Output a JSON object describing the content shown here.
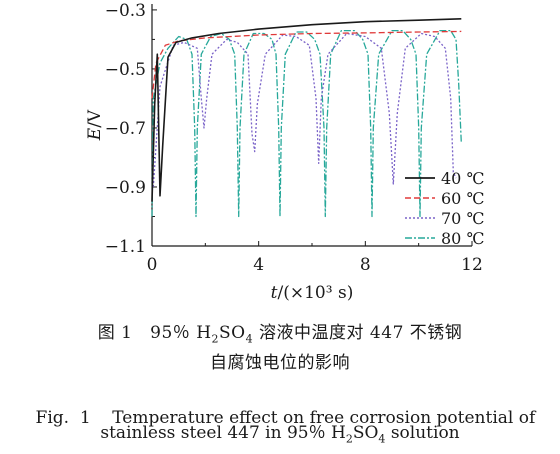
{
  "chart_data": {
    "type": "line",
    "xlabel_prefix": "t",
    "xlabel_suffix": "/(×10³ s)",
    "ylabel_prefix": "E",
    "ylabel_suffix": "/V",
    "xlim": [
      0,
      12
    ],
    "ylim": [
      -1.1,
      -0.28
    ],
    "xticks": [
      "0",
      "4",
      "8",
      "12"
    ],
    "yticks": [
      "−0.3",
      "−0.5",
      "−0.7",
      "−0.9",
      "−1.1"
    ],
    "legend_position": "bottom-right",
    "series": [
      {
        "name": "40 ℃",
        "color": "#1a1a1a",
        "dash": "",
        "points": [
          [
            0.0,
            -0.95
          ],
          [
            0.1,
            -0.62
          ],
          [
            0.2,
            -0.45
          ],
          [
            0.3,
            -0.93
          ],
          [
            0.4,
            -0.76
          ],
          [
            0.6,
            -0.46
          ],
          [
            0.9,
            -0.41
          ],
          [
            1.5,
            -0.395
          ],
          [
            2.5,
            -0.38
          ],
          [
            4,
            -0.365
          ],
          [
            6,
            -0.35
          ],
          [
            8,
            -0.34
          ],
          [
            10,
            -0.335
          ],
          [
            11.6,
            -0.33
          ]
        ]
      },
      {
        "name": "60 ℃",
        "color": "#e03a3a",
        "dash": "6,3",
        "points": [
          [
            0.0,
            -0.6
          ],
          [
            0.15,
            -0.48
          ],
          [
            0.5,
            -0.42
          ],
          [
            1.0,
            -0.405
          ],
          [
            2,
            -0.395
          ],
          [
            4,
            -0.385
          ],
          [
            6,
            -0.38
          ],
          [
            8,
            -0.378
          ],
          [
            10,
            -0.375
          ],
          [
            11.6,
            -0.373
          ]
        ]
      },
      {
        "name": "70 ℃",
        "color": "#7a63c8",
        "dash": "2,2",
        "points": [
          [
            0.05,
            -0.9
          ],
          [
            0.3,
            -0.56
          ],
          [
            0.8,
            -0.42
          ],
          [
            1.2,
            -0.41
          ],
          [
            1.7,
            -0.43
          ],
          [
            1.85,
            -0.6
          ],
          [
            1.95,
            -0.7
          ],
          [
            2.05,
            -0.6
          ],
          [
            2.25,
            -0.45
          ],
          [
            2.8,
            -0.4
          ],
          [
            3.2,
            -0.41
          ],
          [
            3.6,
            -0.45
          ],
          [
            3.75,
            -0.72
          ],
          [
            3.85,
            -0.78
          ],
          [
            3.95,
            -0.62
          ],
          [
            4.25,
            -0.45
          ],
          [
            4.9,
            -0.385
          ],
          [
            5.4,
            -0.39
          ],
          [
            5.9,
            -0.42
          ],
          [
            6.15,
            -0.6
          ],
          [
            6.25,
            -0.82
          ],
          [
            6.35,
            -0.6
          ],
          [
            6.6,
            -0.45
          ],
          [
            7.3,
            -0.38
          ],
          [
            8,
            -0.39
          ],
          [
            8.6,
            -0.43
          ],
          [
            8.9,
            -0.65
          ],
          [
            9.05,
            -0.89
          ],
          [
            9.2,
            -0.65
          ],
          [
            9.5,
            -0.43
          ],
          [
            10.1,
            -0.38
          ],
          [
            10.6,
            -0.39
          ],
          [
            11.0,
            -0.43
          ],
          [
            11.2,
            -0.6
          ],
          [
            11.3,
            -0.85
          ],
          [
            11.4,
            -0.87
          ]
        ]
      },
      {
        "name": "80 ℃",
        "color": "#27a89a",
        "dash": "7,2,2,2",
        "points": [
          [
            0.0,
            -1.0
          ],
          [
            0.05,
            -0.6
          ],
          [
            0.3,
            -0.48
          ],
          [
            0.6,
            -0.43
          ],
          [
            1.0,
            -0.39
          ],
          [
            1.3,
            -0.4
          ],
          [
            1.5,
            -0.45
          ],
          [
            1.6,
            -0.7
          ],
          [
            1.65,
            -1.0
          ],
          [
            1.7,
            -0.7
          ],
          [
            1.85,
            -0.45
          ],
          [
            2.2,
            -0.39
          ],
          [
            2.6,
            -0.38
          ],
          [
            2.9,
            -0.4
          ],
          [
            3.1,
            -0.45
          ],
          [
            3.2,
            -0.7
          ],
          [
            3.25,
            -1.0
          ],
          [
            3.3,
            -0.7
          ],
          [
            3.45,
            -0.45
          ],
          [
            3.8,
            -0.38
          ],
          [
            4.2,
            -0.38
          ],
          [
            4.5,
            -0.4
          ],
          [
            4.65,
            -0.45
          ],
          [
            4.75,
            -0.7
          ],
          [
            4.8,
            -1.0
          ],
          [
            4.85,
            -0.7
          ],
          [
            5.0,
            -0.45
          ],
          [
            5.4,
            -0.375
          ],
          [
            5.8,
            -0.375
          ],
          [
            6.1,
            -0.4
          ],
          [
            6.3,
            -0.45
          ],
          [
            6.45,
            -0.7
          ],
          [
            6.5,
            -1.0
          ],
          [
            6.55,
            -0.7
          ],
          [
            6.7,
            -0.45
          ],
          [
            7.1,
            -0.37
          ],
          [
            7.6,
            -0.37
          ],
          [
            7.9,
            -0.4
          ],
          [
            8.1,
            -0.45
          ],
          [
            8.2,
            -0.7
          ],
          [
            8.25,
            -1.0
          ],
          [
            8.3,
            -0.7
          ],
          [
            8.5,
            -0.45
          ],
          [
            9.0,
            -0.37
          ],
          [
            9.4,
            -0.37
          ],
          [
            9.7,
            -0.4
          ],
          [
            9.9,
            -0.45
          ],
          [
            10.0,
            -0.7
          ],
          [
            10.05,
            -1.0
          ],
          [
            10.1,
            -0.7
          ],
          [
            10.3,
            -0.45
          ],
          [
            10.8,
            -0.37
          ],
          [
            11.2,
            -0.37
          ],
          [
            11.4,
            -0.4
          ],
          [
            11.5,
            -0.55
          ],
          [
            11.6,
            -0.75
          ]
        ]
      }
    ]
  },
  "caption": {
    "cn_line1_fig": "图 1",
    "cn_line1_a": "95％ H",
    "cn_line1_sub1": "2",
    "cn_line1_b": "SO",
    "cn_line1_sub2": "4",
    "cn_line1_c": " 溶液中温度对 447 不锈钢",
    "cn_line2": "自腐蚀电位的影响",
    "en_line1": "Fig.  1    Temperature effect on free corrosion potential of",
    "en_line2_a": "stainless steel 447 in 95％ H",
    "en_line2_sub1": "2",
    "en_line2_b": "SO",
    "en_line2_sub2": "4",
    "en_line2_c": " solution"
  }
}
